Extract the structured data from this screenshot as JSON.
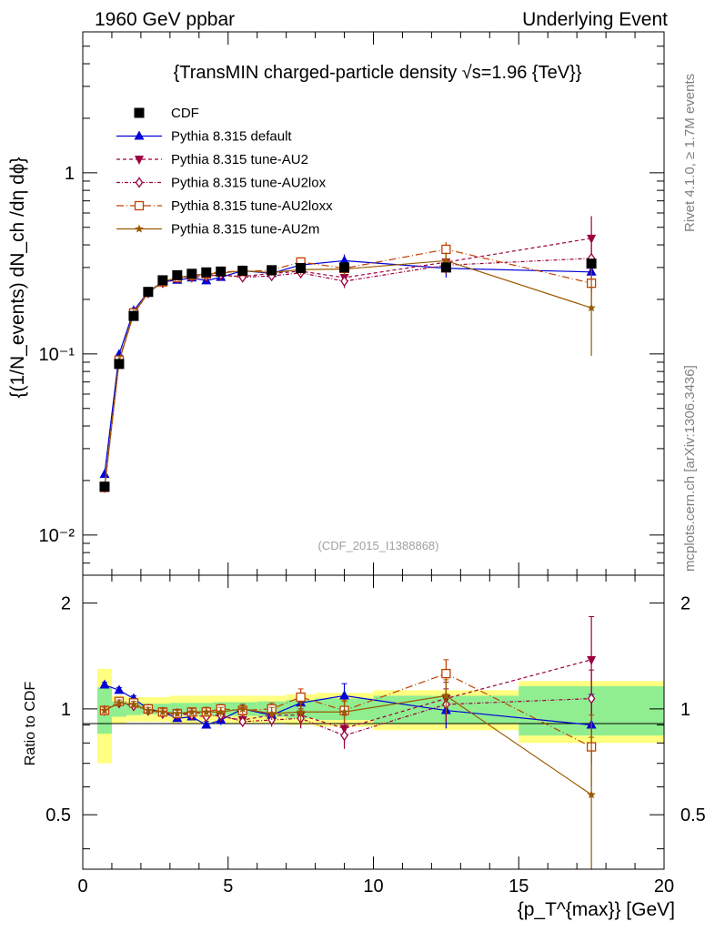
{
  "header": {
    "left": "1960 GeV ppbar",
    "right": "Underlying Event",
    "side_top": "Rivet 4.1.0, ≥ 1.7M events",
    "side_bottom": "mcplots.cern.ch [arXiv:1306.3436]"
  },
  "chart_data": {
    "type": "scatter",
    "title": "{TransMIN charged-particle density √s=1.96 {TeV}}",
    "analysis_id": "(CDF_2015_I1388868)",
    "ylabel": "{(1/N_events) dN_ch /dη dϕ}",
    "ratio_ylabel": "Ratio to CDF",
    "xlabel": "{p_T^{max}} [GeV]",
    "xlim": [
      0,
      20
    ],
    "ylim": [
      0.006,
      6
    ],
    "yscale": "log",
    "ratio_ylim": [
      0.35,
      2.4
    ],
    "x_ticks": [
      "0",
      "5",
      "10",
      "15",
      "20"
    ],
    "y_ticks": [
      "10⁻²",
      "10⁻¹",
      "1"
    ],
    "ratio_ticks": [
      "0.5",
      "1",
      "2"
    ],
    "reference": {
      "name": "CDF",
      "x": [
        0.75,
        1.25,
        1.75,
        2.25,
        2.75,
        3.25,
        3.75,
        4.25,
        4.75,
        5.5,
        6.5,
        7.5,
        9.0,
        12.5,
        17.5
      ],
      "y": [
        0.0185,
        0.088,
        0.162,
        0.22,
        0.255,
        0.272,
        0.277,
        0.282,
        0.285,
        0.288,
        0.29,
        0.298,
        0.3,
        0.3,
        0.315
      ],
      "band_inner": [
        0.15,
        0.05,
        0.04,
        0.035,
        0.035,
        0.04,
        0.04,
        0.04,
        0.045,
        0.045,
        0.05,
        0.06,
        0.07,
        0.09,
        0.16
      ],
      "band_outer": [
        0.3,
        0.09,
        0.08,
        0.08,
        0.08,
        0.09,
        0.09,
        0.09,
        0.09,
        0.09,
        0.09,
        0.1,
        0.11,
        0.13,
        0.2
      ]
    },
    "x_edges": [
      0.5,
      1.0,
      1.5,
      2.0,
      2.5,
      3.0,
      3.5,
      4.0,
      4.5,
      5.0,
      6.0,
      7.0,
      8.0,
      10.0,
      15.0,
      20.0
    ],
    "series": [
      {
        "name": "Pythia 8.315 default",
        "color": "#0000d8",
        "dash": "",
        "marker": "triangle-up",
        "x": [
          0.75,
          1.25,
          1.75,
          2.25,
          2.75,
          3.25,
          3.75,
          4.25,
          4.75,
          5.5,
          6.5,
          7.5,
          9.0,
          12.5,
          17.5
        ],
        "ratio": [
          1.17,
          1.13,
          1.07,
          1.0,
          0.98,
          0.94,
          0.95,
          0.9,
          0.93,
          1.0,
          0.96,
          1.04,
          1.09,
          0.99,
          0.9
        ],
        "ratio_err": [
          0.02,
          0.02,
          0.02,
          0.02,
          0.02,
          0.02,
          0.02,
          0.02,
          0.03,
          0.03,
          0.04,
          0.06,
          0.09,
          0.11,
          0.2
        ]
      },
      {
        "name": "Pythia 8.315 tune-AU2",
        "color": "#9b0040",
        "dash": "4,3",
        "marker": "triangle-down",
        "x": [
          0.75,
          1.25,
          1.75,
          2.25,
          2.75,
          3.25,
          3.75,
          4.25,
          4.75,
          5.5,
          6.5,
          7.5,
          9.0,
          12.5,
          17.5
        ],
        "ratio": [
          0.99,
          1.04,
          1.03,
          0.99,
          0.98,
          0.96,
          0.98,
          0.97,
          0.95,
          0.93,
          0.96,
          0.96,
          0.88,
          1.07,
          1.38
        ],
        "ratio_err": [
          0.02,
          0.02,
          0.02,
          0.02,
          0.02,
          0.02,
          0.02,
          0.03,
          0.03,
          0.03,
          0.04,
          0.06,
          0.08,
          0.12,
          0.45
        ]
      },
      {
        "name": "Pythia 8.315 tune-AU2lox",
        "color": "#9b0040",
        "dash": "4,2,1,2",
        "marker": "diamond-open",
        "x": [
          0.75,
          1.25,
          1.75,
          2.25,
          2.75,
          3.25,
          3.75,
          4.25,
          4.75,
          5.5,
          6.5,
          7.5,
          9.0,
          12.5,
          17.5
        ],
        "ratio": [
          0.99,
          1.04,
          1.02,
          0.99,
          0.97,
          0.97,
          0.96,
          0.95,
          0.96,
          0.92,
          0.93,
          0.94,
          0.84,
          1.03,
          1.07
        ],
        "ratio_err": [
          0.02,
          0.02,
          0.02,
          0.02,
          0.02,
          0.02,
          0.02,
          0.03,
          0.03,
          0.03,
          0.04,
          0.06,
          0.07,
          0.11,
          0.22
        ]
      },
      {
        "name": "Pythia 8.315 tune-AU2loxx",
        "color": "#c04000",
        "dash": "8,3,1,3",
        "marker": "square-open",
        "x": [
          0.75,
          1.25,
          1.75,
          2.25,
          2.75,
          3.25,
          3.75,
          4.25,
          4.75,
          5.5,
          6.5,
          7.5,
          9.0,
          12.5,
          17.5
        ],
        "ratio": [
          0.99,
          1.05,
          1.04,
          1.0,
          0.98,
          0.97,
          0.98,
          0.98,
          1.0,
          0.99,
          1.0,
          1.08,
          0.99,
          1.26,
          0.78
        ],
        "ratio_err": [
          0.02,
          0.02,
          0.02,
          0.02,
          0.02,
          0.02,
          0.02,
          0.03,
          0.03,
          0.03,
          0.04,
          0.06,
          0.07,
          0.12,
          0.18
        ]
      },
      {
        "name": "Pythia 8.315 tune-AU2m",
        "color": "#9b5a00",
        "dash": "",
        "marker": "star",
        "x": [
          0.75,
          1.25,
          1.75,
          2.25,
          2.75,
          3.25,
          3.75,
          4.25,
          4.75,
          5.5,
          6.5,
          7.5,
          9.0,
          12.5,
          17.5
        ],
        "ratio": [
          0.99,
          1.04,
          1.03,
          0.99,
          0.98,
          0.97,
          0.98,
          0.98,
          0.98,
          1.0,
          0.97,
          0.98,
          0.98,
          1.09,
          0.57
        ],
        "ratio_err": [
          0.02,
          0.02,
          0.02,
          0.02,
          0.02,
          0.02,
          0.02,
          0.03,
          0.03,
          0.03,
          0.04,
          0.06,
          0.07,
          0.12,
          0.26
        ]
      }
    ]
  }
}
